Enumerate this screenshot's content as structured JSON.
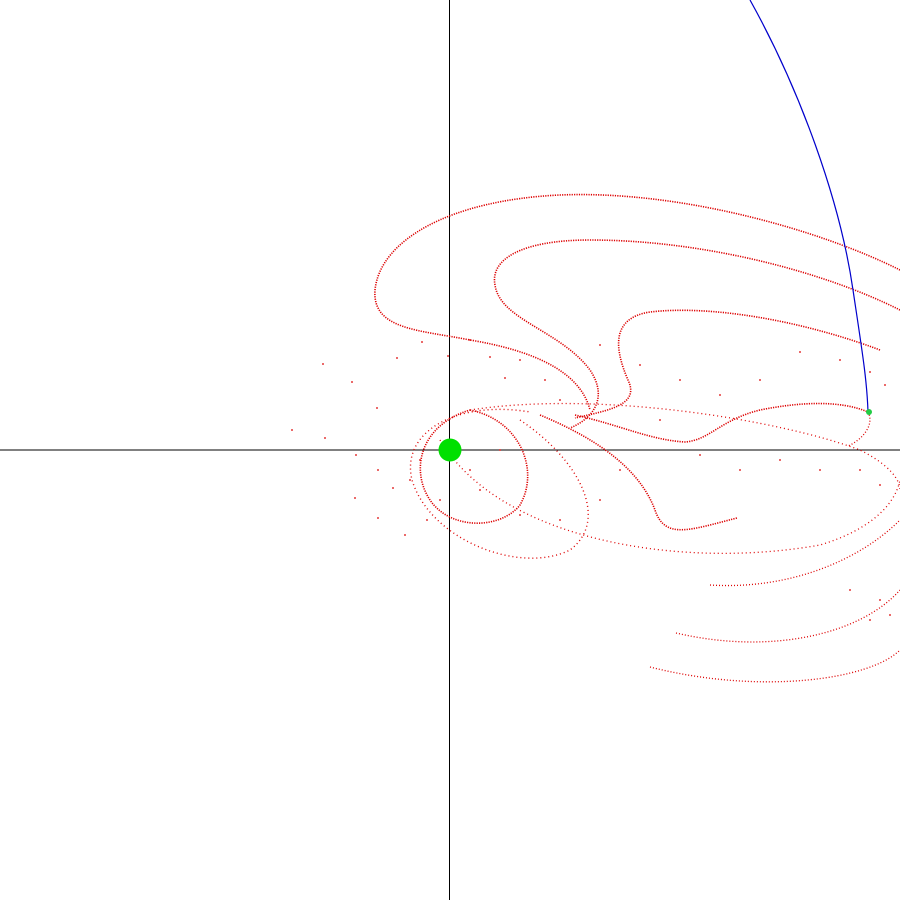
{
  "colors": {
    "background": "#ffffff",
    "axes": "#000000",
    "central_body": "#00e000",
    "satellite": "#22cc44",
    "orbit": "#0000cc",
    "particles": "#dd0000"
  },
  "scene": {
    "central_body": {
      "shape": "filled-circle",
      "color": "#00e000"
    },
    "satellite": {
      "shape": "small-dot",
      "color": "#22cc44"
    },
    "orbit_path": {
      "color": "#0000cc",
      "style": "thin-curve"
    },
    "particle_streams": {
      "color": "#dd0000",
      "style": "dotted-curves",
      "count": 13
    }
  }
}
